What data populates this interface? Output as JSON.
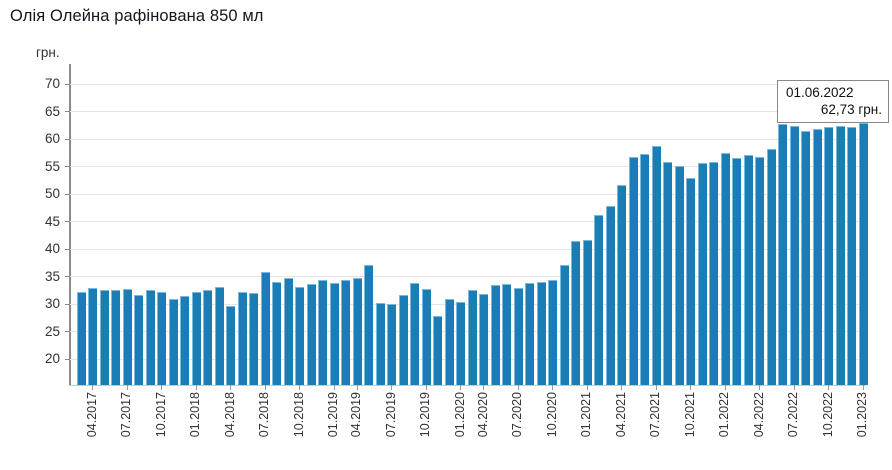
{
  "title": "Олія Олейна рафінована 850 мл",
  "y_axis": {
    "unit": "грн."
  },
  "tooltip": {
    "date": "01.06.2022",
    "value": "62,73 грн."
  },
  "colors": {
    "bar": "#1b7db6",
    "grid": "#e4e4e4",
    "axis": "#8a8a8a",
    "text": "#333333",
    "title_text": "#15151f",
    "tooltip_border": "#888888",
    "tooltip_bg": "#ffffff"
  },
  "chart_data": {
    "type": "bar",
    "title": "Олія Олейна рафінована 850 мл",
    "xlabel": "",
    "ylabel": "грн.",
    "ylim": [
      15.3,
      72
    ],
    "y_ticks": [
      20,
      25,
      30,
      35,
      40,
      45,
      50,
      55,
      60,
      65,
      70
    ],
    "grid": true,
    "legend": "none",
    "values": [
      32.2,
      33.0,
      32.6,
      32.5,
      32.8,
      31.6,
      32.5,
      32.2,
      30.9,
      31.4,
      32.3,
      32.6,
      33.1,
      29.7,
      32.3,
      32.1,
      35.9,
      34.0,
      34.7,
      33.2,
      33.6,
      34.4,
      33.8,
      34.4,
      34.7,
      37.1,
      30.2,
      30.1,
      31.7,
      33.8,
      32.7,
      27.8,
      31.0,
      30.4,
      32.6,
      31.9,
      33.5,
      33.7,
      32.9,
      33.9,
      34.1,
      34.4,
      37.1,
      41.4,
      41.7,
      46.2,
      47.9,
      51.7,
      56.7,
      57.3,
      58.8,
      55.9,
      55.2,
      52.9,
      55.6,
      55.8,
      57.4,
      56.5,
      57.1,
      56.7,
      58.2,
      62.73,
      62.4,
      61.5,
      61.9,
      62.3,
      62.4,
      62.2,
      63.0
    ],
    "x_tick_labels": [
      {
        "label": "04.2017",
        "bar_index": 1
      },
      {
        "label": "07.2017",
        "bar_index": 4
      },
      {
        "label": "10.2017",
        "bar_index": 7
      },
      {
        "label": "01.2018",
        "bar_index": 10
      },
      {
        "label": "04.2018",
        "bar_index": 13
      },
      {
        "label": "07.2018",
        "bar_index": 16
      },
      {
        "label": "10.2018",
        "bar_index": 19
      },
      {
        "label": "01.2019",
        "bar_index": 22
      },
      {
        "label": "04.2019",
        "bar_index": 24
      },
      {
        "label": "07.2019",
        "bar_index": 27
      },
      {
        "label": "10.2019",
        "bar_index": 30
      },
      {
        "label": "01.2020",
        "bar_index": 33
      },
      {
        "label": "04.2020",
        "bar_index": 35
      },
      {
        "label": "07.2020",
        "bar_index": 38
      },
      {
        "label": "10.2020",
        "bar_index": 41
      },
      {
        "label": "01.2021",
        "bar_index": 44
      },
      {
        "label": "04.2021",
        "bar_index": 47
      },
      {
        "label": "07.2021",
        "bar_index": 50
      },
      {
        "label": "10.2021",
        "bar_index": 53
      },
      {
        "label": "01.2022",
        "bar_index": 56
      },
      {
        "label": "04.2022",
        "bar_index": 59
      },
      {
        "label": "07.2022",
        "bar_index": 62
      },
      {
        "label": "10.2022",
        "bar_index": 65
      },
      {
        "label": "01.2023",
        "bar_index": 68
      }
    ],
    "highlight": {
      "bar_index": 61,
      "date": "01.06.2022",
      "value": 62.73,
      "value_text": "62,73 грн."
    }
  }
}
